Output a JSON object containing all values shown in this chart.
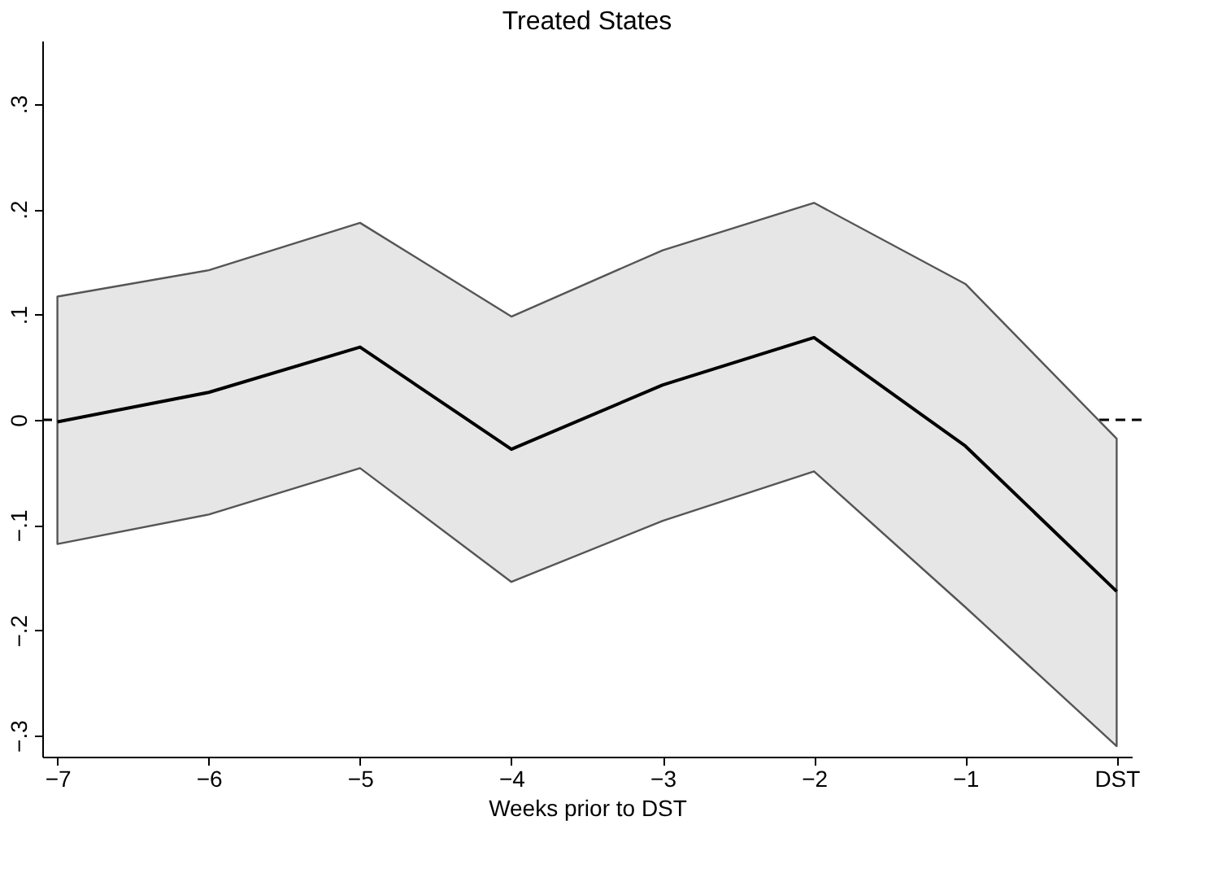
{
  "chart_data": {
    "type": "line",
    "title": "Treated States",
    "xlabel": "Weeks prior to DST",
    "x": [
      -7,
      -6,
      -5,
      -4,
      -3,
      -2,
      -1,
      0
    ],
    "series": [
      {
        "color": "#000000",
        "values": [
          -0.002,
          0.026,
          0.069,
          -0.028,
          0.033,
          0.078,
          -0.025,
          -0.163
        ],
        "lower": [
          -0.118,
          -0.09,
          -0.046,
          -0.154,
          -0.096,
          -0.049,
          -0.178,
          -0.31
        ],
        "upper": [
          0.117,
          0.142,
          0.187,
          0.098,
          0.161,
          0.206,
          0.129,
          -0.018
        ]
      }
    ],
    "xlim": [
      -7.1,
      0.1
    ],
    "xticks": [
      {
        "value": -7,
        "label": "−7"
      },
      {
        "value": -6,
        "label": "−6"
      },
      {
        "value": -5,
        "label": "−5"
      },
      {
        "value": -4,
        "label": "−4"
      },
      {
        "value": -3,
        "label": "−3"
      },
      {
        "value": -2,
        "label": "−2"
      },
      {
        "value": -1,
        "label": "−1"
      },
      {
        "value": 0,
        "label": "DST"
      }
    ],
    "ylim": [
      -0.32,
      0.36
    ],
    "yticks": [
      {
        "value": -0.3,
        "label": "−.3"
      },
      {
        "value": -0.2,
        "label": "−.2"
      },
      {
        "value": -0.1,
        "label": "−.1"
      },
      {
        "value": 0,
        "label": "0"
      },
      {
        "value": 0.1,
        "label": ".1"
      },
      {
        "value": 0.2,
        "label": ".2"
      },
      {
        "value": 0.3,
        "label": ".3"
      }
    ],
    "ref_lines": [
      {
        "axis": "y",
        "value": 0,
        "color": "#000000",
        "line_style": "dashed"
      }
    ],
    "grid": false,
    "marker": "none",
    "line_style": "solid"
  }
}
